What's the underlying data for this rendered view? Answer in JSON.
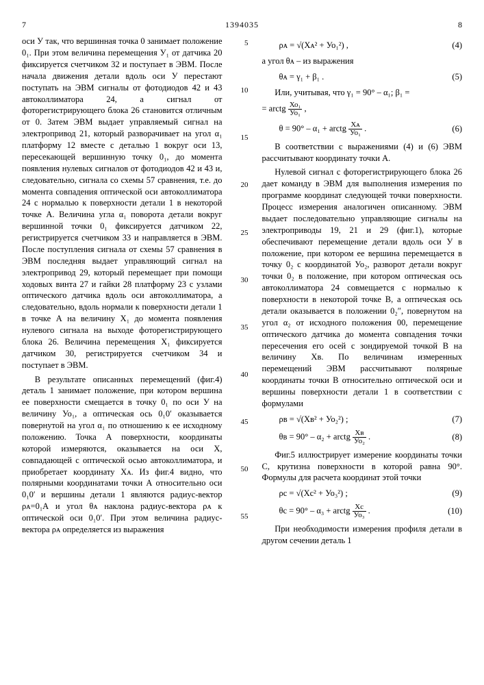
{
  "header": {
    "pageLeft": "7",
    "docNumber": "1394035",
    "pageRight": "8"
  },
  "lineMarks": [
    "5",
    "10",
    "15",
    "20",
    "25",
    "30",
    "35",
    "40",
    "45",
    "50",
    "55"
  ],
  "left": {
    "p1": "оси У так, что вершинная точка 0 занимает положение 0₁. При этом величина перемещения У₁ от датчика 20 фиксируется счетчиком 32 и поступает в ЭВМ. После начала движения детали вдоль оси У перестают поступать на ЭВМ сигналы от фотодиодов 42 и 43 автоколлиматора 24, а сигнал от фоторегистрирующего блока 26 становится отличным от 0. Затем ЭВМ выдает управляемый сигнал на электропривод 21, который разворачивает на угол α₁ платформу 12 вместе с деталью 1 вокруг оси 13, пересекающей вершинную точку 0₁, до момента появления нулевых сигналов от фотодиодов 42 и 43 и, следовательно, сигнала со схемы 57 сравнения, т.е. до момента совпадения оптической оси автоколлиматора 24 с нормалью к поверхности детали 1 в некоторой точке А. Величина угла α₁ поворота детали вокруг вершинной точки 0₁ фиксируется датчиком 22, регистрируется счетчиком 33 и направляется в ЭВМ. После поступления сигнала от схемы 57 сравнения в ЭВМ последняя выдает управляющий сигнал на электропривод 29, который перемещает при помощи ходовых винта 27 и гайки 28 платформу 23 с узлами оптического датчика вдоль оси автоколлиматора, а следовательно, вдоль нормали к поверхности детали 1 в точке А на величину Х₁ до момента появления нулевого сигнала на выходе фоторегистрирующего блока 26. Величина перемещения Х₁ фиксируется датчиком 30, регистрируется счетчиком 34 и поступает в ЭВМ.",
    "p2": "В результате описанных перемещений (фиг.4) деталь 1 занимает положение, при котором вершина ее поверхности смещается в точку 0₁ по оси У на величину Уо₁, а оптическая ось 0₁0′ оказывается повернутой на угол α₁ по отношению к ее исходному положению. Точка А поверхности, координаты которой измеряются, оказывается на оси Х, совпадающей с оптической осью автоколлиматора, и приобретает координату Хᴀ. Из фиг.4 видно, что полярными координатами точки А относительно оси 0₁0′ и вершины детали 1 являются радиус-вектор ρᴀ=0₁А и угол θᴀ наклона радиус-вектора ρᴀ к оптической оси 0₁0′. При этом величина радиус-вектора ρᴀ определяется из выражения"
  },
  "right": {
    "f4": {
      "expr": "ρᴀ = √(Хᴀ² + Уо₁²) ,",
      "num": "(4)"
    },
    "p3": "а угол θᴀ – из выражения",
    "f5": {
      "expr": "θᴀ = γ₁ + β₁ .",
      "num": "(5)"
    },
    "p4a": "Или, учитывая, что γ₁ = 90° – α₁; β₁ =",
    "p4b": "= arctg ",
    "p4frac": {
      "n": "Хо₁",
      "d": "Уо₁"
    },
    "p4c": " ,",
    "f6": {
      "expr": "θ = 90° – α₁ + arctg ",
      "frac": {
        "n": "Хᴀ",
        "d": "Уо₁"
      },
      "tail": " .",
      "num": "(6)"
    },
    "p5": "В соответствии с выражениями (4) и (6) ЭВМ рассчитывают координату точки А.",
    "p6": "Нулевой сигнал с фоторегистрирующего блока 26 дает команду в ЭВМ для выполнения измерения по программе координат следующей точки поверхности. Процесс измерения аналогичен описанному. ЭВМ выдает последовательно управляющие сигналы на электроприводы 19, 21 и 29 (фиг.1), которые обеспечивают перемещение детали вдоль оси У в положение, при котором ее вершина перемещается в точку 0₂ с координатой Уо₂, разворот детали вокруг точки 0₂ в положение, при котором оптическая ось автоколлиматора 24 совмещается с нормалью к поверхности в некоторой точке В, а оптическая ось детали оказывается в положении 0₂″, повернутом на угол α₂ от исходного положения 00, перемещение оптического датчика до момента совпадения точки пересечения его осей с зондируемой точкой В на величину Хв. По величинам измеренных перемещений ЭВМ рассчитывают полярные координаты точки В относительно оптической оси и вершины поверхности детали 1 в соответствии с формулами",
    "f7": {
      "expr": "ρв = √(Хв² + Уо₂²) ;",
      "num": "(7)"
    },
    "f8": {
      "expr": "θв = 90° – α₂ + arctg ",
      "frac": {
        "n": "Хв",
        "d": "Уо₂"
      },
      "tail": " .",
      "num": "(8)"
    },
    "p7": "Фиг.5 иллюстрирует измерение координаты точки С, крутизна поверхности в которой равна 90°. Формулы для расчета координат этой точки",
    "f9": {
      "expr": "ρс = √(Хс² + Уо₃²) ;",
      "num": "(9)"
    },
    "f10": {
      "expr": "θс = 90° – α₃ + arctg ",
      "frac": {
        "n": "Хс",
        "d": "Уо₃"
      },
      "tail": " .",
      "num": "(10)"
    },
    "p8": "При необходимости измерения профиля детали в другом сечении деталь 1"
  }
}
